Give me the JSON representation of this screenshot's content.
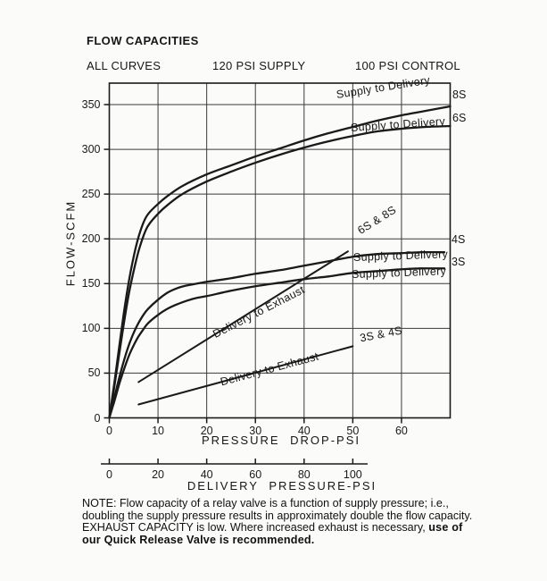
{
  "header": {
    "title": "FLOW CAPACITIES",
    "conditions": [
      "ALL CURVES",
      "120 PSI SUPPLY",
      "100 PSI CONTROL"
    ]
  },
  "chart_data": {
    "type": "line",
    "title": "FLOW CAPACITIES",
    "ylabel": "FLOW-SCFM",
    "xlabel_primary": "PRESSURE DROP-PSI",
    "ylim": [
      0,
      374
    ],
    "yticks": [
      0,
      50,
      100,
      150,
      200,
      250,
      300,
      350
    ],
    "xlim_primary": [
      0,
      70
    ],
    "xticks_primary": [
      0,
      10,
      20,
      30,
      40,
      50,
      60
    ],
    "secondary_axis": {
      "label": "DELIVERY PRESSURE-PSI",
      "ticks": [
        0,
        20,
        40,
        60,
        80,
        100
      ],
      "range": [
        0,
        100
      ]
    },
    "grid": true,
    "legend_position": "inline-labels",
    "series": [
      {
        "name": "Supply to Delivery",
        "tag": "8S",
        "x_axis": "pressure-drop",
        "points": [
          [
            0,
            0
          ],
          [
            1,
            38
          ],
          [
            2,
            78
          ],
          [
            3,
            118
          ],
          [
            4,
            152
          ],
          [
            5,
            180
          ],
          [
            6,
            202
          ],
          [
            7,
            218
          ],
          [
            8,
            228
          ],
          [
            10,
            239
          ],
          [
            12,
            248
          ],
          [
            15,
            259
          ],
          [
            20,
            272
          ],
          [
            25,
            282
          ],
          [
            30,
            292
          ],
          [
            35,
            301
          ],
          [
            40,
            310
          ],
          [
            45,
            318
          ],
          [
            50,
            325
          ],
          [
            55,
            332
          ],
          [
            60,
            338
          ],
          [
            65,
            343
          ],
          [
            70,
            348
          ]
        ]
      },
      {
        "name": "Supply to Delivery",
        "tag": "6S",
        "x_axis": "pressure-drop",
        "points": [
          [
            0,
            0
          ],
          [
            1,
            34
          ],
          [
            2,
            70
          ],
          [
            3,
            106
          ],
          [
            4,
            138
          ],
          [
            5,
            164
          ],
          [
            6,
            186
          ],
          [
            7,
            203
          ],
          [
            8,
            215
          ],
          [
            10,
            228
          ],
          [
            12,
            238
          ],
          [
            15,
            250
          ],
          [
            20,
            264
          ],
          [
            25,
            275
          ],
          [
            30,
            285
          ],
          [
            35,
            294
          ],
          [
            40,
            302
          ],
          [
            45,
            309
          ],
          [
            50,
            315
          ],
          [
            55,
            320
          ],
          [
            60,
            323
          ],
          [
            65,
            325
          ],
          [
            70,
            326
          ]
        ]
      },
      {
        "name": "Supply to Delivery",
        "tag": "4S",
        "x_axis": "pressure-drop",
        "points": [
          [
            0,
            0
          ],
          [
            1,
            22
          ],
          [
            2,
            44
          ],
          [
            3,
            64
          ],
          [
            4,
            81
          ],
          [
            5,
            95
          ],
          [
            6,
            106
          ],
          [
            7,
            115
          ],
          [
            8,
            122
          ],
          [
            10,
            132
          ],
          [
            12,
            140
          ],
          [
            14,
            145
          ],
          [
            16,
            148
          ],
          [
            18,
            150
          ],
          [
            20,
            152
          ],
          [
            25,
            156
          ],
          [
            30,
            161
          ],
          [
            35,
            165
          ],
          [
            40,
            170
          ],
          [
            45,
            175
          ],
          [
            50,
            180
          ],
          [
            55,
            183
          ],
          [
            60,
            184
          ],
          [
            64,
            185
          ],
          [
            68.8,
            185
          ]
        ]
      },
      {
        "name": "Supply to Delivery",
        "tag": "3S",
        "x_axis": "pressure-drop",
        "points": [
          [
            0,
            0
          ],
          [
            1,
            18
          ],
          [
            2,
            37
          ],
          [
            3,
            54
          ],
          [
            4,
            69
          ],
          [
            5,
            81
          ],
          [
            6,
            91
          ],
          [
            7,
            99
          ],
          [
            8,
            106
          ],
          [
            10,
            115
          ],
          [
            12,
            122
          ],
          [
            14,
            127
          ],
          [
            16,
            131
          ],
          [
            18,
            134
          ],
          [
            20,
            136
          ],
          [
            25,
            142
          ],
          [
            30,
            147
          ],
          [
            35,
            151
          ],
          [
            40,
            155
          ],
          [
            45,
            158
          ],
          [
            50,
            162
          ],
          [
            55,
            164
          ],
          [
            60,
            166
          ],
          [
            64,
            167
          ],
          [
            68.8,
            167
          ]
        ]
      },
      {
        "name": "Delivery to Exhaust",
        "tag": "6S & 8S",
        "x_axis": "delivery-pressure",
        "points": [
          [
            12,
            40
          ],
          [
            98,
            186
          ]
        ]
      },
      {
        "name": "Delivery to Exhaust",
        "tag": "3S & 4S",
        "x_axis": "delivery-pressure",
        "points": [
          [
            12,
            15
          ],
          [
            100,
            80
          ]
        ]
      }
    ]
  },
  "note": {
    "regular": "NOTE: Flow capacity of a relay valve is a function of supply pressure; i.e., doubling the supply pressure results in approximately double the flow capacity. EXHAUST CAPACITY is low. Where increased exhaust is necessary, ",
    "bold": "use of our Quick Release Valve is recommended."
  },
  "colors": {
    "ink": "#1a1a1a",
    "grid": "#3a3a3a",
    "background": "#fbfbfa"
  }
}
